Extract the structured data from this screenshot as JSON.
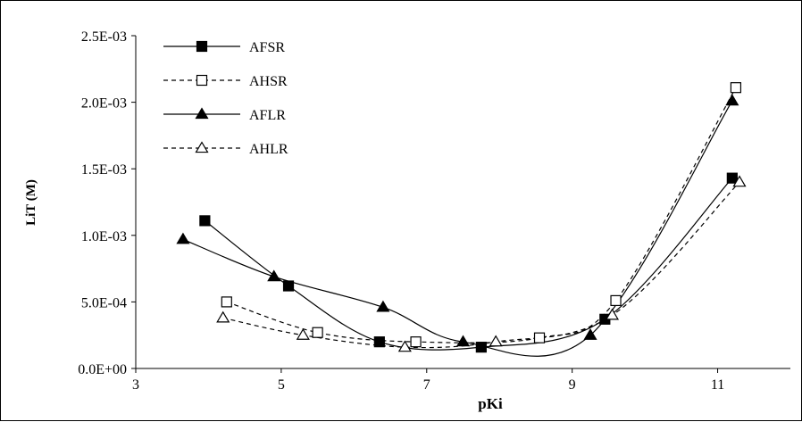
{
  "chart_data": {
    "type": "line",
    "title": "",
    "xlabel": "pKi",
    "ylabel": "LiT (M)",
    "xlim": [
      3,
      12
    ],
    "ylim": [
      0,
      0.0025
    ],
    "x_ticks": [
      "3",
      "5",
      "7",
      "9",
      "11"
    ],
    "y_ticks": [
      "0.0E+00",
      "5.0E-04",
      "1.0E-03",
      "1.5E-03",
      "2.0E-03",
      "2.5E-03"
    ],
    "grid": false,
    "legend_position": "top-left",
    "series": [
      {
        "name": "AFSR",
        "line": "solid",
        "marker": "filled-square",
        "points": [
          [
            3.95,
            0.00111
          ],
          [
            5.1,
            0.00062
          ],
          [
            6.35,
            0.0002
          ],
          [
            7.75,
            0.00016
          ],
          [
            9.45,
            0.00037
          ],
          [
            11.2,
            0.00143
          ]
        ]
      },
      {
        "name": "AHSR",
        "line": "dashed",
        "marker": "open-square",
        "points": [
          [
            4.25,
            0.0005
          ],
          [
            5.5,
            0.00027
          ],
          [
            6.85,
            0.0002
          ],
          [
            8.55,
            0.00023
          ],
          [
            9.6,
            0.00051
          ],
          [
            11.25,
            0.00211
          ]
        ]
      },
      {
        "name": "AFLR",
        "line": "solid",
        "marker": "filled-triangle",
        "points": [
          [
            3.65,
            0.00097
          ],
          [
            4.9,
            0.00069
          ],
          [
            6.4,
            0.00046
          ],
          [
            7.5,
            0.0002
          ],
          [
            9.25,
            0.00025
          ],
          [
            11.2,
            0.00201
          ]
        ]
      },
      {
        "name": "AHLR",
        "line": "dashed",
        "marker": "open-triangle",
        "points": [
          [
            4.2,
            0.00038
          ],
          [
            5.3,
            0.00025
          ],
          [
            6.7,
            0.00016
          ],
          [
            7.95,
            0.0002
          ],
          [
            9.55,
            0.0004
          ],
          [
            11.3,
            0.0014
          ]
        ]
      }
    ]
  }
}
